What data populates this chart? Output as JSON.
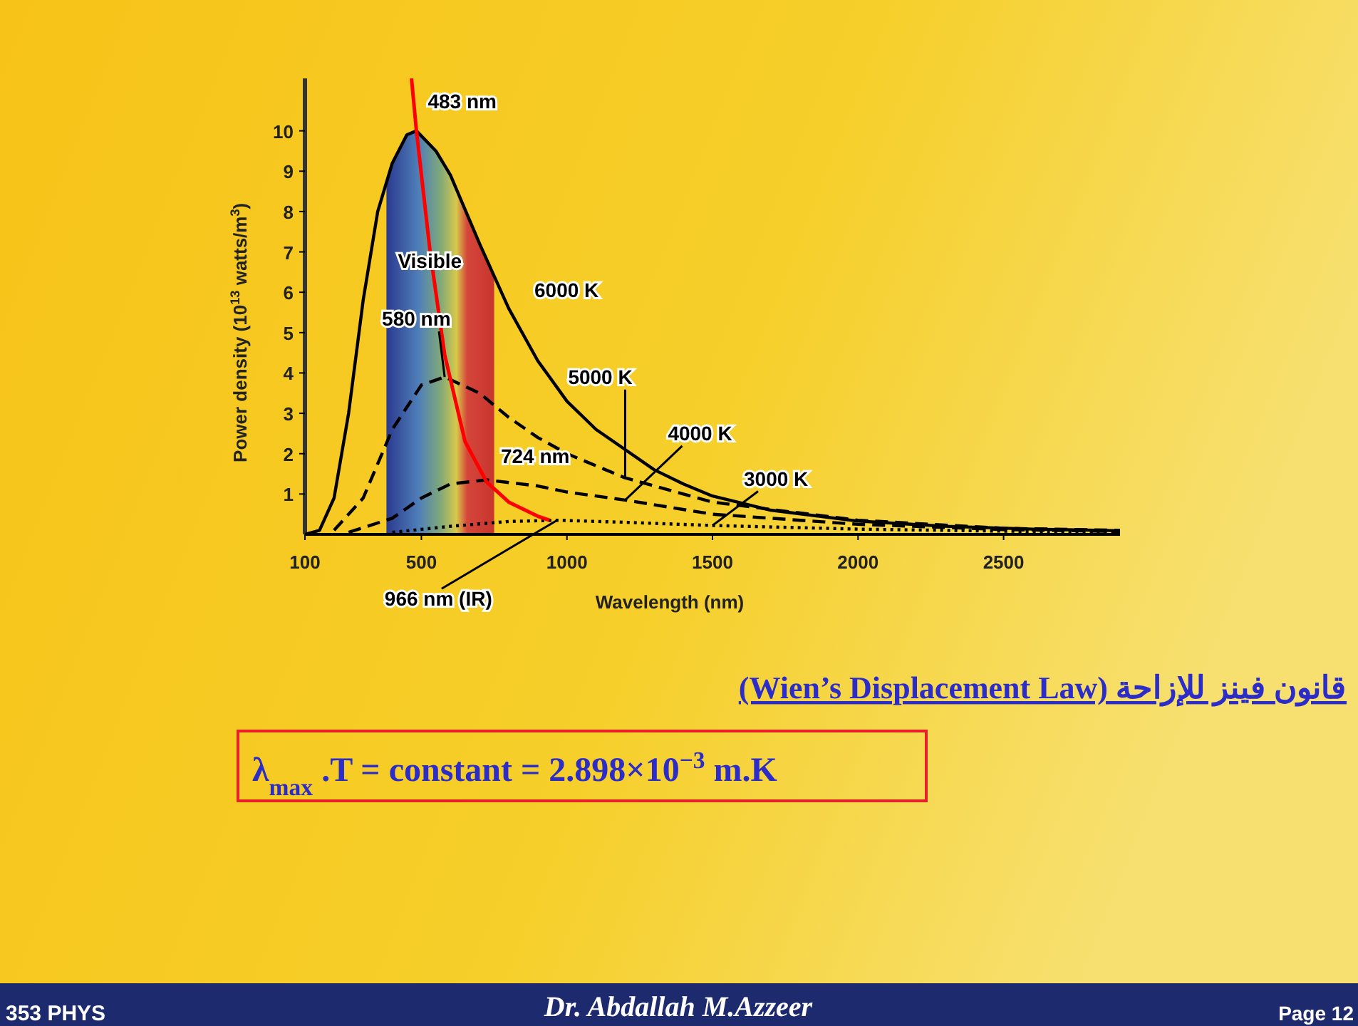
{
  "chart_data": {
    "type": "line",
    "title": "(Wien’s Displacement Law) قانون فينز للإزاحة",
    "subtitle": "λ$_{max}$ .T = constant = 2.898×10$^{−3}$ m.K",
    "xlabel": "Wavelength (nm)",
    "ylabel": "Power density (10$^{13}$ watts/m$^{3}$)",
    "xlim": [
      100,
      2900
    ],
    "ylim": [
      0,
      11.3
    ],
    "xticks": [
      100,
      500,
      1000,
      1500,
      2000,
      2500
    ],
    "yticks": [
      1,
      2,
      3,
      4,
      5,
      6,
      7,
      8,
      9,
      10
    ],
    "grid": false,
    "bands": [
      {
        "axis": "x",
        "from": 380,
        "to": 750,
        "label": "Visible"
      }
    ],
    "series": [
      {
        "color": "#000000",
        "line_style": "solid",
        "x": [
          100,
          150,
          200,
          250,
          300,
          350,
          400,
          450,
          483,
          550,
          600,
          700,
          800,
          900,
          1000,
          1100,
          1200,
          1300,
          1400,
          1500,
          1700,
          2000,
          2300,
          2600,
          2900
        ],
        "values": [
          0,
          0.1,
          0.9,
          3,
          5.8,
          8,
          9.2,
          9.9,
          10,
          9.5,
          8.9,
          7.2,
          5.6,
          4.3,
          3.3,
          2.6,
          2.1,
          1.6,
          1.25,
          0.95,
          0.6,
          0.33,
          0.2,
          0.13,
          0.09
        ]
      },
      {
        "color": "#000000",
        "line_style": "dashed",
        "x": [
          200,
          300,
          400,
          500,
          580,
          700,
          800,
          900,
          1000,
          1200,
          1500,
          2000,
          2500,
          2900
        ],
        "values": [
          0.1,
          0.9,
          2.6,
          3.7,
          3.9,
          3.5,
          2.9,
          2.4,
          2.0,
          1.4,
          0.8,
          0.35,
          0.15,
          0.1
        ]
      },
      {
        "color": "#000000",
        "line_style": "dashed",
        "x": [
          250,
          400,
          500,
          600,
          724,
          900,
          1000,
          1200,
          1500,
          2000,
          2500,
          2900
        ],
        "values": [
          0.05,
          0.4,
          0.9,
          1.25,
          1.35,
          1.2,
          1.05,
          0.85,
          0.5,
          0.25,
          0.12,
          0.07
        ]
      },
      {
        "color": "#000000",
        "line_style": "dotted",
        "x": [
          400,
          600,
          800,
          966,
          1200,
          1500,
          2000,
          2500,
          2900
        ],
        "values": [
          0.05,
          0.2,
          0.32,
          0.35,
          0.3,
          0.22,
          0.13,
          0.08,
          0.05
        ]
      },
      {
        "color": "#ff0000",
        "line_style": "solid",
        "x": [
          466,
          483,
          530,
          580,
          650,
          724,
          800,
          900,
          940
        ],
        "values": [
          11.3,
          10,
          7,
          4.45,
          2.3,
          1.3,
          0.8,
          0.45,
          0.35
        ]
      }
    ],
    "annotations": [
      {
        "text": "483 nm",
        "x": 483,
        "y": 10
      },
      {
        "text": "580 nm",
        "x": 580,
        "y": 3.9
      },
      {
        "text": "6000 K",
        "x": 800,
        "y": 5.6
      },
      {
        "text": "5000 K",
        "x": 1200,
        "y": 1.4
      },
      {
        "text": "4000 K",
        "x": 1200,
        "y": 0.85
      },
      {
        "text": "3000 K",
        "x": 1500,
        "y": 0.22
      },
      {
        "text": "724 nm",
        "x": 724,
        "y": 1.35
      },
      {
        "text": "966 nm (IR)",
        "x": 966,
        "y": 0.35
      },
      "353 PHYS",
      "Dr. Abdallah M.Azzeer",
      "Page 12"
    ]
  }
}
